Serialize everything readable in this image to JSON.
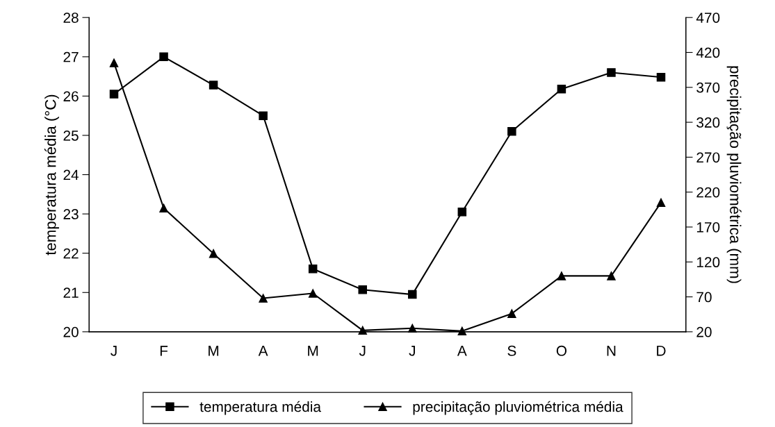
{
  "chart_data": {
    "type": "line",
    "categories": [
      "J",
      "F",
      "M",
      "A",
      "M",
      "J",
      "J",
      "A",
      "S",
      "O",
      "N",
      "D"
    ],
    "ylabel": "temperatura média (°C)",
    "y2label": "precipitação pluviométrica (mm)",
    "ylim": [
      20,
      28
    ],
    "yticks": [
      20,
      21,
      22,
      23,
      24,
      25,
      26,
      27,
      28
    ],
    "y2lim": [
      20,
      470
    ],
    "y2ticks": [
      20,
      70,
      120,
      170,
      220,
      270,
      320,
      370,
      420,
      470
    ],
    "grid": false,
    "legend": "bottom",
    "line_style": "solid",
    "series": [
      {
        "name": "temperatura média",
        "color": "#000000",
        "marker": "square",
        "values": [
          26.05,
          27.0,
          26.28,
          25.5,
          21.6,
          21.07,
          20.95,
          23.05,
          25.1,
          26.18,
          26.6,
          26.48
        ]
      },
      {
        "name": "precipitação pluviométrica média",
        "color": "#000000",
        "marker": "triangle",
        "axis": "y2",
        "values": [
          405,
          197,
          132,
          68,
          75,
          22,
          25,
          21,
          46,
          100,
          100,
          205
        ]
      }
    ]
  }
}
